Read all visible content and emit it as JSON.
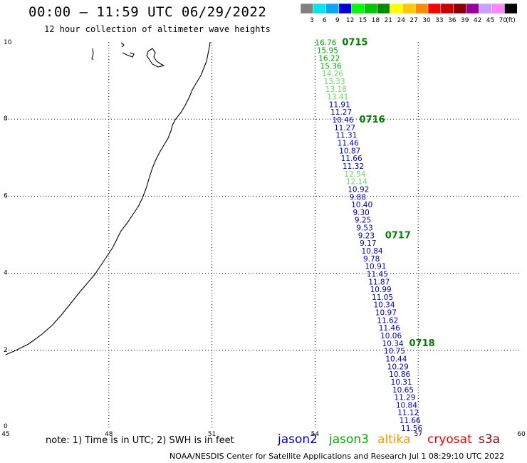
{
  "header": {
    "title": "00:00 – 11:59 UTC 06/29/2022",
    "subtitle": "12 hour collection of altimeter wave heights"
  },
  "legend": {
    "unit": "(ft)",
    "bins": [
      {
        "label": "3",
        "color": "#808080"
      },
      {
        "label": "6",
        "color": "#00e5ee"
      },
      {
        "label": "9",
        "color": "#00a8ff"
      },
      {
        "label": "12",
        "color": "#0000dd"
      },
      {
        "label": "15",
        "color": "#00ff00"
      },
      {
        "label": "18",
        "color": "#00c800"
      },
      {
        "label": "21",
        "color": "#008c00"
      },
      {
        "label": "24",
        "color": "#ffff00"
      },
      {
        "label": "27",
        "color": "#ffc800"
      },
      {
        "label": "30",
        "color": "#ff8c00"
      },
      {
        "label": "33",
        "color": "#ff0000"
      },
      {
        "label": "36",
        "color": "#cc0000"
      },
      {
        "label": "39",
        "color": "#8b0000"
      },
      {
        "label": "42",
        "color": "#9b009b"
      },
      {
        "label": "45",
        "color": "#c8a0ff"
      },
      {
        "label": "70",
        "color": "#ff88ff"
      },
      {
        "label": "",
        "color": "#000000"
      }
    ]
  },
  "map": {
    "lon_range": [
      45,
      60
    ],
    "lat_range": [
      0,
      10
    ],
    "lon_ticks": [
      "45",
      "48",
      "51",
      "54",
      "57",
      "60"
    ],
    "lat_ticks": [
      "0",
      "2",
      "4",
      "6",
      "8",
      "10"
    ],
    "colors": {
      "blue": "#0000bb",
      "light_green": "#66dd66",
      "green": "#00aa00",
      "dark_green": "#008000"
    }
  },
  "track": {
    "points": [
      {
        "value": "16.76",
        "color": "green",
        "lat": 9.92,
        "lon": 54.0
      },
      {
        "value": "15.95",
        "color": "green",
        "lat": 9.71,
        "lon": 54.05
      },
      {
        "value": "16.22",
        "color": "green",
        "lat": 9.51,
        "lon": 54.1
      },
      {
        "value": "15.36",
        "color": "green",
        "lat": 9.31,
        "lon": 54.15
      },
      {
        "value": "14.26",
        "color": "light_green",
        "lat": 9.11,
        "lon": 54.2
      },
      {
        "value": "13.33",
        "color": "light_green",
        "lat": 8.91,
        "lon": 54.25
      },
      {
        "value": "13.18",
        "color": "light_green",
        "lat": 8.71,
        "lon": 54.3
      },
      {
        "value": "13.41",
        "color": "light_green",
        "lat": 8.51,
        "lon": 54.35
      },
      {
        "value": "11.91",
        "color": "blue",
        "lat": 8.31,
        "lon": 54.4
      },
      {
        "value": "11.27",
        "color": "blue",
        "lat": 8.11,
        "lon": 54.45
      },
      {
        "value": "10.46",
        "color": "blue",
        "lat": 7.91,
        "lon": 54.5
      },
      {
        "value": "11.27",
        "color": "blue",
        "lat": 7.71,
        "lon": 54.55
      },
      {
        "value": "11.31",
        "color": "blue",
        "lat": 7.51,
        "lon": 54.6
      },
      {
        "value": "11.46",
        "color": "blue",
        "lat": 7.31,
        "lon": 54.65
      },
      {
        "value": "10.87",
        "color": "blue",
        "lat": 7.11,
        "lon": 54.7
      },
      {
        "value": "11.66",
        "color": "blue",
        "lat": 6.91,
        "lon": 54.75
      },
      {
        "value": "11.32",
        "color": "blue",
        "lat": 6.71,
        "lon": 54.8
      },
      {
        "value": "12.54",
        "color": "light_green",
        "lat": 6.51,
        "lon": 54.85
      },
      {
        "value": "12.14",
        "color": "light_green",
        "lat": 6.31,
        "lon": 54.9
      },
      {
        "value": "10.92",
        "color": "blue",
        "lat": 6.11,
        "lon": 54.95
      },
      {
        "value": "9.88",
        "color": "blue",
        "lat": 5.91,
        "lon": 55.0
      },
      {
        "value": "10.40",
        "color": "blue",
        "lat": 5.71,
        "lon": 55.05
      },
      {
        "value": "9.30",
        "color": "blue",
        "lat": 5.51,
        "lon": 55.1
      },
      {
        "value": "9.25",
        "color": "blue",
        "lat": 5.31,
        "lon": 55.15
      },
      {
        "value": "9.53",
        "color": "blue",
        "lat": 5.11,
        "lon": 55.2
      },
      {
        "value": "9.23",
        "color": "blue",
        "lat": 4.91,
        "lon": 55.25
      },
      {
        "value": "9.17",
        "color": "blue",
        "lat": 4.71,
        "lon": 55.3
      },
      {
        "value": "10.84",
        "color": "blue",
        "lat": 4.51,
        "lon": 55.35
      },
      {
        "value": "9.78",
        "color": "blue",
        "lat": 4.31,
        "lon": 55.4
      },
      {
        "value": "10.91",
        "color": "blue",
        "lat": 4.11,
        "lon": 55.45
      },
      {
        "value": "11.45",
        "color": "blue",
        "lat": 3.91,
        "lon": 55.5
      },
      {
        "value": "11.87",
        "color": "blue",
        "lat": 3.71,
        "lon": 55.55
      },
      {
        "value": "10.99",
        "color": "blue",
        "lat": 3.51,
        "lon": 55.6
      },
      {
        "value": "11.05",
        "color": "blue",
        "lat": 3.31,
        "lon": 55.65
      },
      {
        "value": "10.34",
        "color": "blue",
        "lat": 3.11,
        "lon": 55.7
      },
      {
        "value": "10.97",
        "color": "blue",
        "lat": 2.91,
        "lon": 55.75
      },
      {
        "value": "11.62",
        "color": "blue",
        "lat": 2.71,
        "lon": 55.8
      },
      {
        "value": "11.46",
        "color": "blue",
        "lat": 2.51,
        "lon": 55.85
      },
      {
        "value": "10.06",
        "color": "blue",
        "lat": 2.31,
        "lon": 55.9
      },
      {
        "value": "10.34",
        "color": "blue",
        "lat": 2.11,
        "lon": 55.95
      },
      {
        "value": "10.75",
        "color": "blue",
        "lat": 1.91,
        "lon": 56.0
      },
      {
        "value": "10.44",
        "color": "blue",
        "lat": 1.71,
        "lon": 56.05
      },
      {
        "value": "10.29",
        "color": "blue",
        "lat": 1.51,
        "lon": 56.1
      },
      {
        "value": "10.86",
        "color": "blue",
        "lat": 1.31,
        "lon": 56.15
      },
      {
        "value": "10.31",
        "color": "blue",
        "lat": 1.11,
        "lon": 56.2
      },
      {
        "value": "10.65",
        "color": "blue",
        "lat": 0.91,
        "lon": 56.25
      },
      {
        "value": "11.29",
        "color": "blue",
        "lat": 0.71,
        "lon": 56.3
      },
      {
        "value": "10.84",
        "color": "blue",
        "lat": 0.51,
        "lon": 56.35
      },
      {
        "value": "11.12",
        "color": "blue",
        "lat": 0.31,
        "lon": 56.4
      },
      {
        "value": "11.66",
        "color": "blue",
        "lat": 0.11,
        "lon": 56.45
      },
      {
        "value": "11.56",
        "color": "blue",
        "lat": -0.09,
        "lon": 56.5
      }
    ],
    "times": [
      {
        "label": "0715",
        "after_index": 0
      },
      {
        "label": "0716",
        "after_index": 10
      },
      {
        "label": "0717",
        "after_index": 25
      },
      {
        "label": "0718",
        "after_index": 39
      }
    ]
  },
  "footer": {
    "note": "note:  1) Time is in UTC;  2) SWH is in feet",
    "satellites": [
      {
        "name": "jason2",
        "color": "#0000cc"
      },
      {
        "name": "jason3",
        "color": "#00aa00"
      },
      {
        "name": "altika",
        "color": "#ff9900"
      },
      {
        "name": "cryosat",
        "color": "#ee0000"
      },
      {
        "name": "s3a",
        "color": "#880000"
      }
    ],
    "credit": "NOAA/NESDIS Center for Satellite Applications and Research     Jul  1 08:29:10 UTC 2022"
  }
}
